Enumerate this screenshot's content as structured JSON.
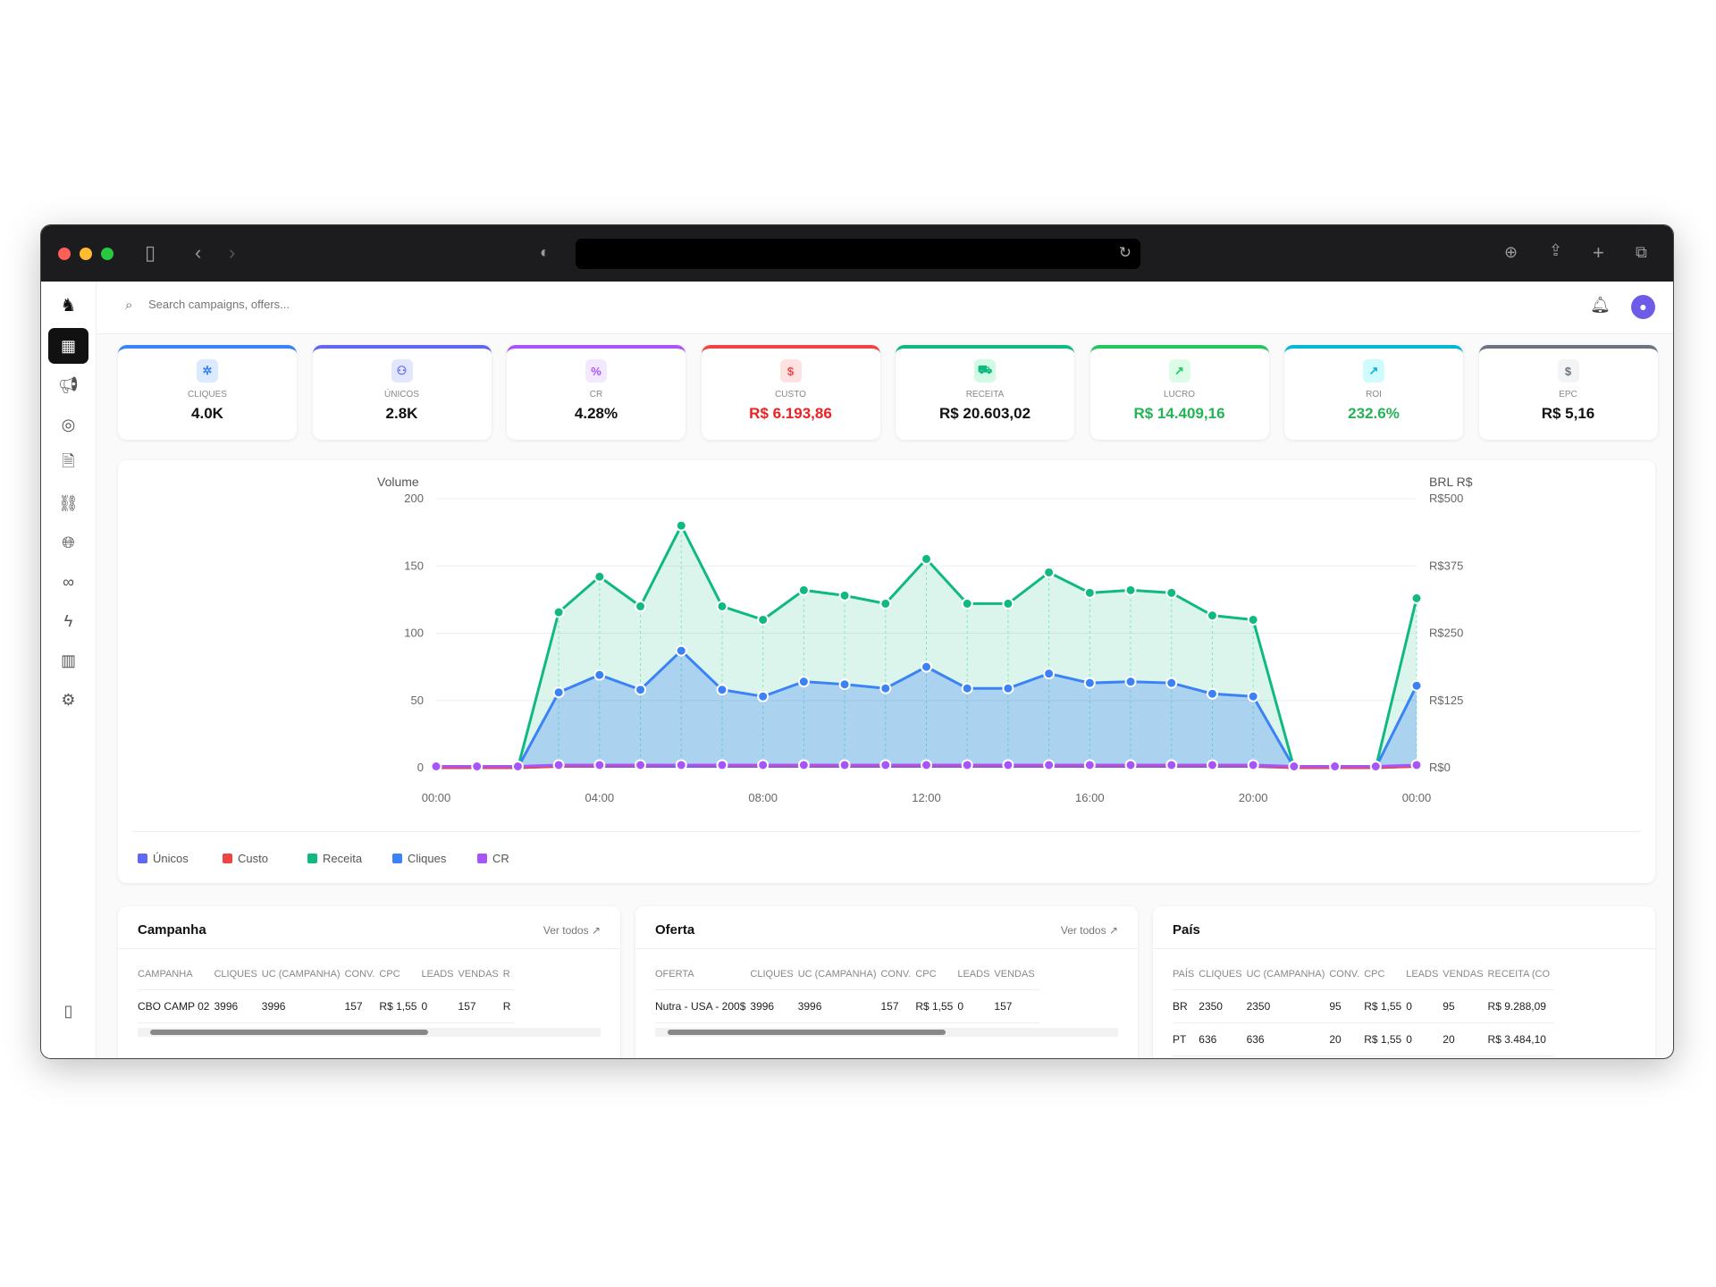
{
  "search": {
    "placeholder": "Search campaigns, offers..."
  },
  "kpis": [
    {
      "label": "CLIQUES",
      "value": "4.0K",
      "color": "#3b82f6",
      "bg": "#dbeafe",
      "icon": "pointer-click-icon",
      "glyph": "✲",
      "value_color": "#111"
    },
    {
      "label": "ÚNICOS",
      "value": "2.8K",
      "color": "#6366f1",
      "bg": "#e0e7ff",
      "icon": "users-icon",
      "glyph": "⚇",
      "value_color": "#111"
    },
    {
      "label": "CR",
      "value": "4.28%",
      "color": "#a855f7",
      "bg": "#f3e8ff",
      "icon": "percent-icon",
      "glyph": "%",
      "value_color": "#111"
    },
    {
      "label": "CUSTO",
      "value": "R$ 6.193,86",
      "color": "#ef4444",
      "bg": "#fee2e2",
      "icon": "dollar-icon",
      "glyph": "$",
      "value_color": "#ef2020"
    },
    {
      "label": "RECEITA",
      "value": "R$ 20.603,02",
      "color": "#10b981",
      "bg": "#d1fae5",
      "icon": "cart-icon",
      "glyph": "⛟",
      "value_color": "#111"
    },
    {
      "label": "LUCRO",
      "value": "R$ 14.409,16",
      "color": "#22c55e",
      "bg": "#dcfce7",
      "icon": "trending-up-icon",
      "glyph": "↗",
      "value_color": "#22b455"
    },
    {
      "label": "ROI",
      "value": "232.6%",
      "color": "#06b6d4",
      "bg": "#cffafe",
      "icon": "arrow-up-right-icon",
      "glyph": "↗",
      "value_color": "#22b455"
    },
    {
      "label": "EPC",
      "value": "R$ 5,16",
      "color": "#6b7280",
      "bg": "#f3f4f6",
      "icon": "dollar-icon",
      "glyph": "$",
      "value_color": "#111"
    }
  ],
  "chart_data": {
    "type": "area",
    "y_left_label": "Volume",
    "y_right_label": "BRL R$",
    "y_left_ticks": [
      "0",
      "50",
      "100",
      "150",
      "200"
    ],
    "ylim_left": [
      0,
      200
    ],
    "y_right_ticks": [
      "R$0",
      "R$125",
      "R$250",
      "R$375",
      "R$500"
    ],
    "ylim_right": [
      0,
      500
    ],
    "x": [
      "00:00",
      "01:00",
      "02:00",
      "03:00",
      "04:00",
      "05:00",
      "06:00",
      "07:00",
      "08:00",
      "09:00",
      "10:00",
      "11:00",
      "12:00",
      "13:00",
      "14:00",
      "15:00",
      "16:00",
      "17:00",
      "18:00",
      "19:00",
      "20:00",
      "21:00",
      "22:00",
      "23:00",
      "00:00"
    ],
    "x_ticks": [
      "00:00",
      "04:00",
      "08:00",
      "12:00",
      "16:00",
      "20:00",
      "00:00"
    ],
    "grid": true,
    "legend": "bottom-left",
    "series": [
      {
        "name": "Receita",
        "axis": "right",
        "color": "#10b981",
        "values": [
          0,
          0,
          0,
          289,
          355,
          300,
          450,
          300,
          275,
          330,
          320,
          305,
          388,
          305,
          305,
          363,
          325,
          330,
          325,
          283,
          275,
          0,
          0,
          0,
          315
        ]
      },
      {
        "name": "Cliques",
        "axis": "left",
        "color": "#3b82f6",
        "values": [
          0,
          0,
          0,
          56,
          69,
          58,
          87,
          58,
          53,
          64,
          62,
          59,
          75,
          59,
          59,
          70,
          63,
          64,
          63,
          55,
          53,
          0,
          0,
          0,
          61
        ]
      },
      {
        "name": "Únicos",
        "axis": "left",
        "color": "#6366f1",
        "values": [
          0,
          0,
          0,
          1,
          1,
          1,
          1,
          1,
          1,
          1,
          1,
          1,
          1,
          1,
          1,
          1,
          1,
          1,
          1,
          1,
          1,
          0,
          0,
          0,
          1
        ]
      },
      {
        "name": "Custo",
        "axis": "right",
        "color": "#ef4444",
        "values": [
          0,
          0,
          0,
          3,
          4,
          4,
          5,
          4,
          4,
          4,
          4,
          4,
          4,
          4,
          4,
          4,
          4,
          4,
          4,
          4,
          4,
          0,
          0,
          0,
          3
        ]
      },
      {
        "name": "CR",
        "axis": "left",
        "color": "#a855f7",
        "values": [
          1,
          1,
          1,
          2,
          2,
          2,
          2,
          2,
          2,
          2,
          2,
          2,
          2,
          2,
          2,
          2,
          2,
          2,
          2,
          2,
          2,
          1,
          1,
          1,
          2
        ]
      }
    ],
    "legend_order": [
      "Únicos",
      "Custo",
      "Receita",
      "Cliques",
      "CR"
    ]
  },
  "tables": [
    {
      "title": "Campanha",
      "link": "Ver todos ↗",
      "headers": [
        "CAMPANHA",
        "CLIQUES",
        "UC (CAMPANHA)",
        "CONV.",
        "CPC",
        "LEADS",
        "VENDAS",
        "R"
      ],
      "rows": [
        [
          "CBO CAMP 02",
          "3996",
          "3996",
          "157",
          "R$ 1,55",
          "0",
          "157",
          "R"
        ]
      ]
    },
    {
      "title": "Oferta",
      "link": "Ver todos ↗",
      "headers": [
        "OFERTA",
        "CLIQUES",
        "UC (CAMPANHA)",
        "CONV.",
        "CPC",
        "LEADS",
        "VENDAS"
      ],
      "rows": [
        [
          "Nutra - USA - 200$",
          "3996",
          "3996",
          "157",
          "R$ 1,55",
          "0",
          "157"
        ]
      ]
    },
    {
      "title": "País",
      "link": "",
      "headers": [
        "PAÍS",
        "CLIQUES",
        "UC (CAMPANHA)",
        "CONV.",
        "CPC",
        "LEADS",
        "VENDAS",
        "RECEITA (CO"
      ],
      "rows": [
        [
          "BR",
          "2350",
          "2350",
          "95",
          "R$ 1,55",
          "0",
          "95",
          "R$ 9.288,09"
        ],
        [
          "PT",
          "636",
          "636",
          "20",
          "R$ 1,55",
          "0",
          "20",
          "R$ 3.484,10"
        ]
      ]
    }
  ]
}
